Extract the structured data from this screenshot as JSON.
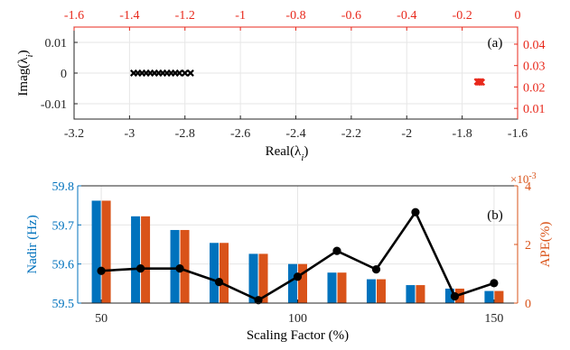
{
  "colors": {
    "black": "#000000",
    "red": "#e8291c",
    "blue": "#0072bd",
    "orange": "#d95319",
    "grid": "#e6e6e6",
    "axis": "#262626"
  },
  "chart_data": [
    {
      "panel_label": "(a)",
      "type": "scatter",
      "grid": true,
      "xlabel": "Real(λ",
      "xlabel_sub": "i",
      "xlabel_close": ")",
      "ylabel": "Imag(λ",
      "ylabel_sub": "i",
      "ylabel_close": ")",
      "bottom_axis": {
        "range": [
          -3.2,
          -1.6
        ],
        "ticks": [
          -3.2,
          -3,
          -2.8,
          -2.6,
          -2.4,
          -2.2,
          -2,
          -1.8,
          -1.6
        ],
        "tick_labels": [
          "-3.2",
          "-3",
          "-2.8",
          "-2.6",
          "-2.4",
          "-2.2",
          "-2",
          "-1.8",
          "-1.6"
        ]
      },
      "left_axis": {
        "range": [
          -0.015,
          0.015
        ],
        "ticks": [
          -0.01,
          0,
          0.01
        ],
        "tick_labels": [
          "-0.01",
          "0",
          "0.01"
        ]
      },
      "top_axis": {
        "range": [
          -1.6,
          0
        ],
        "ticks": [
          -1.6,
          -1.4,
          -1.2,
          -1,
          -0.8,
          -0.6,
          -0.4,
          -0.2,
          0
        ],
        "tick_labels": [
          "-1.6",
          "-1.4",
          "-1.2",
          "-1",
          "-0.8",
          "-0.6",
          "-0.4",
          "-0.2",
          "0"
        ]
      },
      "right_axis": {
        "range": [
          0.005,
          0.048
        ],
        "ticks": [
          0.01,
          0.02,
          0.03,
          0.04
        ],
        "tick_labels": [
          "0.01",
          "0.02",
          "0.03",
          "0.04"
        ]
      },
      "series": [
        {
          "marker": "x",
          "axes": "bottom-left",
          "x": [
            -2.985,
            -2.97,
            -2.955,
            -2.94,
            -2.925,
            -2.91,
            -2.895,
            -2.88,
            -2.865,
            -2.85,
            -2.835,
            -2.82,
            -2.8,
            -2.78
          ],
          "y": [
            0,
            0,
            0,
            0,
            0,
            0,
            0,
            0,
            0,
            0,
            0,
            0,
            0,
            0
          ]
        },
        {
          "marker": "x",
          "axes": "top-right",
          "x": [
            -0.145,
            -0.142,
            -0.139,
            -0.136,
            -0.133,
            -0.13
          ],
          "y": [
            0.0225,
            0.0222,
            0.0225,
            0.0222,
            0.0225,
            0.0222
          ]
        }
      ]
    },
    {
      "panel_label": "(b)",
      "type": "bar",
      "grid": true,
      "xlabel": "Scaling Factor (%)",
      "ylabel_left": "Nadir (Hz)",
      "ylabel_right": "APE(%)",
      "right_exponent_base": "×10",
      "right_exponent_power": "-3",
      "x": [
        50,
        60,
        70,
        80,
        90,
        100,
        110,
        120,
        130,
        140,
        150
      ],
      "x_range": [
        44,
        156
      ],
      "x_ticks": [
        50,
        100,
        150
      ],
      "x_tick_labels": [
        "50",
        "100",
        "150"
      ],
      "left_axis": {
        "range": [
          59.5,
          59.8
        ],
        "ticks": [
          59.5,
          59.6,
          59.7,
          59.8
        ],
        "tick_labels": [
          "59.5",
          "59.6",
          "59.7",
          "59.8"
        ]
      },
      "right_axis": {
        "range": [
          0,
          0.004
        ],
        "ticks": [
          0,
          0.002,
          0.004
        ],
        "tick_labels": [
          "0",
          "2",
          "4"
        ]
      },
      "series": [
        {
          "kind": "bar",
          "color": "#0072bd",
          "values": [
            59.762,
            59.722,
            59.687,
            59.654,
            59.626,
            59.6,
            59.578,
            59.561,
            59.546,
            59.537,
            59.531
          ]
        },
        {
          "kind": "bar",
          "color": "#d95319",
          "values": [
            59.762,
            59.722,
            59.687,
            59.654,
            59.626,
            59.6,
            59.578,
            59.561,
            59.546,
            59.537,
            59.531
          ]
        },
        {
          "kind": "line",
          "axis": "right",
          "color": "#000000",
          "values": [
            0.0011,
            0.00118,
            0.00118,
            0.00072,
            0.0001,
            0.0009,
            0.00178,
            0.00115,
            0.0031,
            0.00023,
            0.00068
          ]
        }
      ]
    }
  ]
}
